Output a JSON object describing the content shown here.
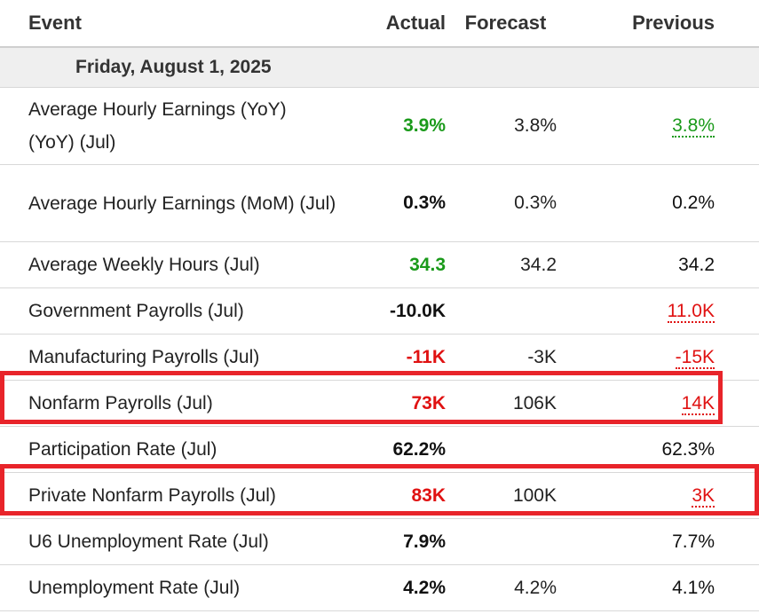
{
  "header": {
    "event": "Event",
    "actual": "Actual",
    "forecast": "Forecast",
    "previous": "Previous"
  },
  "date_label": "Friday, August 1, 2025",
  "colors": {
    "positive": "#1a9a1a",
    "negative": "#e01212",
    "highlight": "#e8242a"
  },
  "rows": [
    {
      "event": "Average Hourly Earnings (YoY) (YoY) (Jul)",
      "actual": "3.9%",
      "forecast": "3.8%",
      "previous": "3.8%"
    },
    {
      "event": "Average Hourly Earnings (MoM) (Jul)",
      "actual": "0.3%",
      "forecast": "0.3%",
      "previous": "0.2%"
    },
    {
      "event": "Average Weekly Hours (Jul)",
      "actual": "34.3",
      "forecast": "34.2",
      "previous": "34.2"
    },
    {
      "event": "Government Payrolls (Jul)",
      "actual": "-10.0K",
      "forecast": "",
      "previous": "11.0K"
    },
    {
      "event": "Manufacturing Payrolls (Jul)",
      "actual": "-11K",
      "forecast": "-3K",
      "previous": "-15K"
    },
    {
      "event": "Nonfarm Payrolls (Jul)",
      "actual": "73K",
      "forecast": "106K",
      "previous": "14K"
    },
    {
      "event": "Participation Rate (Jul)",
      "actual": "62.2%",
      "forecast": "",
      "previous": "62.3%"
    },
    {
      "event": "Private Nonfarm Payrolls (Jul)",
      "actual": "83K",
      "forecast": "100K",
      "previous": "3K"
    },
    {
      "event": "U6 Unemployment Rate (Jul)",
      "actual": "7.9%",
      "forecast": "",
      "previous": "7.7%"
    },
    {
      "event": "Unemployment Rate (Jul)",
      "actual": "4.2%",
      "forecast": "4.2%",
      "previous": "4.1%"
    }
  ]
}
